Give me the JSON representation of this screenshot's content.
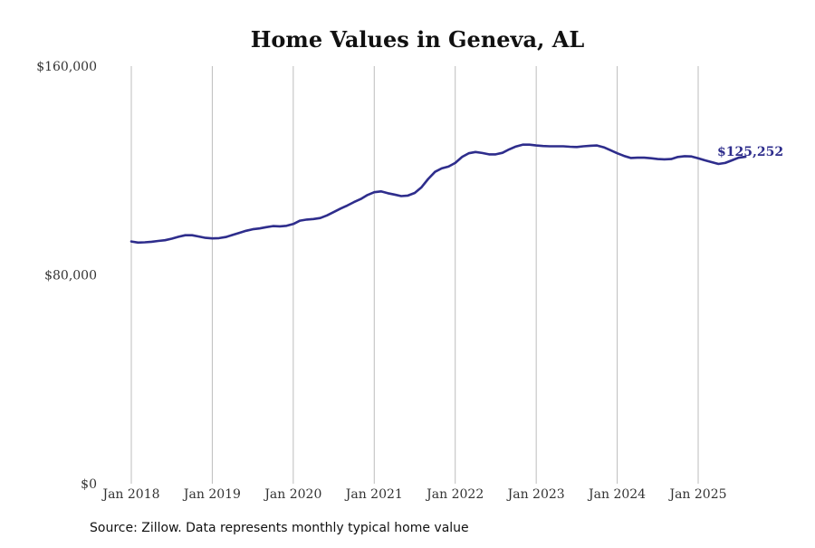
{
  "chart_data": {
    "type": "line",
    "title": "Home Values in Geneva, AL",
    "source": "Source: Zillow. Data represents monthly typical home value",
    "xlabel": "",
    "ylabel": "",
    "ylim": [
      0,
      160000
    ],
    "y_ticks": [
      {
        "value": 0,
        "label": "$0"
      },
      {
        "value": 80000,
        "label": "$80,000"
      },
      {
        "value": 160000,
        "label": "$160,000"
      }
    ],
    "x_ticks": [
      "Jan 2018",
      "Jan 2019",
      "Jan 2020",
      "Jan 2021",
      "Jan 2022",
      "Jan 2023",
      "Jan 2024",
      "Jan 2025"
    ],
    "grid": "vertical lines at x ticks",
    "line_color": "#2e2d8c",
    "end_label": "$125,252",
    "series": [
      {
        "values": [
          {
            "x": "2018-01",
            "y": 92800
          },
          {
            "x": "2018-02",
            "y": 92400
          },
          {
            "x": "2018-03",
            "y": 92500
          },
          {
            "x": "2018-04",
            "y": 92700
          },
          {
            "x": "2018-05",
            "y": 93000
          },
          {
            "x": "2018-06",
            "y": 93300
          },
          {
            "x": "2018-07",
            "y": 93900
          },
          {
            "x": "2018-08",
            "y": 94600
          },
          {
            "x": "2018-09",
            "y": 95200
          },
          {
            "x": "2018-10",
            "y": 95200
          },
          {
            "x": "2018-11",
            "y": 94700
          },
          {
            "x": "2018-12",
            "y": 94200
          },
          {
            "x": "2019-01",
            "y": 94000
          },
          {
            "x": "2019-02",
            "y": 94100
          },
          {
            "x": "2019-03",
            "y": 94500
          },
          {
            "x": "2019-04",
            "y": 95300
          },
          {
            "x": "2019-05",
            "y": 96100
          },
          {
            "x": "2019-06",
            "y": 96900
          },
          {
            "x": "2019-07",
            "y": 97500
          },
          {
            "x": "2019-08",
            "y": 97800
          },
          {
            "x": "2019-09",
            "y": 98300
          },
          {
            "x": "2019-10",
            "y": 98700
          },
          {
            "x": "2019-11",
            "y": 98600
          },
          {
            "x": "2019-12",
            "y": 98800
          },
          {
            "x": "2020-01",
            "y": 99500
          },
          {
            "x": "2020-02",
            "y": 100800
          },
          {
            "x": "2020-03",
            "y": 101200
          },
          {
            "x": "2020-04",
            "y": 101400
          },
          {
            "x": "2020-05",
            "y": 101800
          },
          {
            "x": "2020-06",
            "y": 102800
          },
          {
            "x": "2020-07",
            "y": 104100
          },
          {
            "x": "2020-08",
            "y": 105400
          },
          {
            "x": "2020-09",
            "y": 106600
          },
          {
            "x": "2020-10",
            "y": 107900
          },
          {
            "x": "2020-11",
            "y": 109100
          },
          {
            "x": "2020-12",
            "y": 110600
          },
          {
            "x": "2021-01",
            "y": 111700
          },
          {
            "x": "2021-02",
            "y": 112000
          },
          {
            "x": "2021-03",
            "y": 111300
          },
          {
            "x": "2021-04",
            "y": 110800
          },
          {
            "x": "2021-05",
            "y": 110200
          },
          {
            "x": "2021-06",
            "y": 110400
          },
          {
            "x": "2021-07",
            "y": 111400
          },
          {
            "x": "2021-08",
            "y": 113600
          },
          {
            "x": "2021-09",
            "y": 116800
          },
          {
            "x": "2021-10",
            "y": 119500
          },
          {
            "x": "2021-11",
            "y": 120800
          },
          {
            "x": "2021-12",
            "y": 121500
          },
          {
            "x": "2022-01",
            "y": 122900
          },
          {
            "x": "2022-02",
            "y": 125200
          },
          {
            "x": "2022-03",
            "y": 126600
          },
          {
            "x": "2022-04",
            "y": 127100
          },
          {
            "x": "2022-05",
            "y": 126700
          },
          {
            "x": "2022-06",
            "y": 126200
          },
          {
            "x": "2022-07",
            "y": 126200
          },
          {
            "x": "2022-08",
            "y": 126800
          },
          {
            "x": "2022-09",
            "y": 128100
          },
          {
            "x": "2022-10",
            "y": 129200
          },
          {
            "x": "2022-11",
            "y": 129900
          },
          {
            "x": "2022-12",
            "y": 129900
          },
          {
            "x": "2023-01",
            "y": 129600
          },
          {
            "x": "2023-02",
            "y": 129400
          },
          {
            "x": "2023-03",
            "y": 129300
          },
          {
            "x": "2023-04",
            "y": 129300
          },
          {
            "x": "2023-05",
            "y": 129300
          },
          {
            "x": "2023-06",
            "y": 129100
          },
          {
            "x": "2023-07",
            "y": 129000
          },
          {
            "x": "2023-08",
            "y": 129300
          },
          {
            "x": "2023-09",
            "y": 129500
          },
          {
            "x": "2023-10",
            "y": 129600
          },
          {
            "x": "2023-11",
            "y": 128900
          },
          {
            "x": "2023-12",
            "y": 127800
          },
          {
            "x": "2024-01",
            "y": 126600
          },
          {
            "x": "2024-02",
            "y": 125600
          },
          {
            "x": "2024-03",
            "y": 124800
          },
          {
            "x": "2024-04",
            "y": 124900
          },
          {
            "x": "2024-05",
            "y": 124900
          },
          {
            "x": "2024-06",
            "y": 124700
          },
          {
            "x": "2024-07",
            "y": 124400
          },
          {
            "x": "2024-08",
            "y": 124300
          },
          {
            "x": "2024-09",
            "y": 124400
          },
          {
            "x": "2024-10",
            "y": 125200
          },
          {
            "x": "2024-11",
            "y": 125500
          },
          {
            "x": "2024-12",
            "y": 125400
          },
          {
            "x": "2025-01",
            "y": 124700
          },
          {
            "x": "2025-02",
            "y": 123900
          },
          {
            "x": "2025-03",
            "y": 123200
          },
          {
            "x": "2025-04",
            "y": 122500
          },
          {
            "x": "2025-05",
            "y": 122900
          },
          {
            "x": "2025-06",
            "y": 123900
          },
          {
            "x": "2025-07",
            "y": 124900
          },
          {
            "x": "2025-08",
            "y": 125252
          }
        ]
      }
    ]
  }
}
